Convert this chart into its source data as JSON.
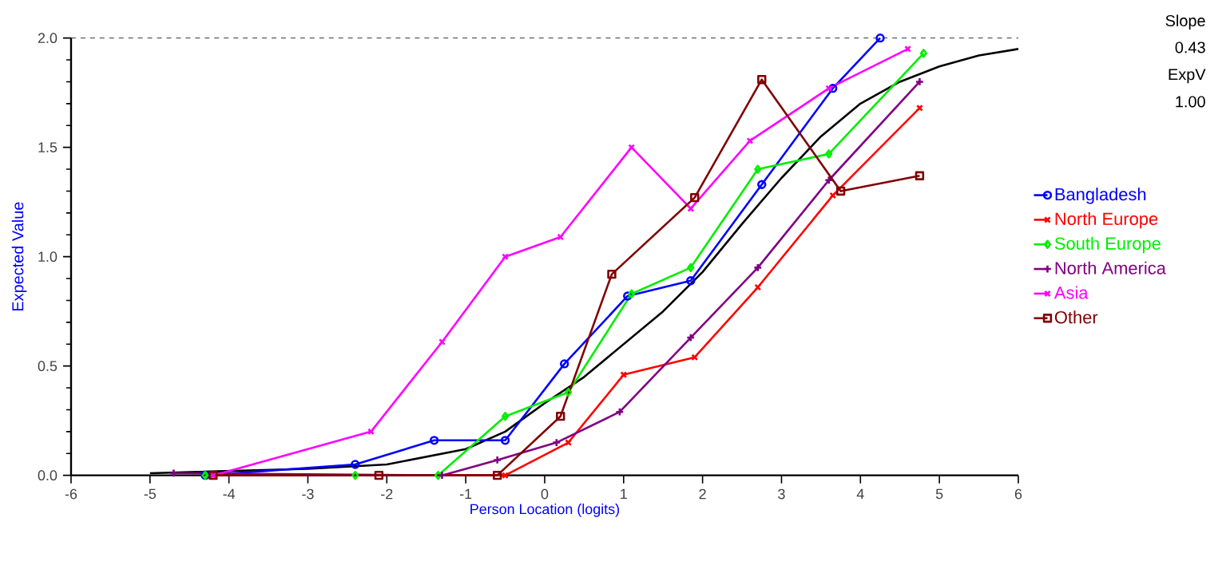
{
  "chart_data": {
    "type": "line",
    "xlabel": "Person Location (logits)",
    "ylabel": "Expected Value",
    "xlim": [
      -6,
      6
    ],
    "xticks": [
      -6,
      -5,
      -4,
      -3,
      -2,
      -1,
      0,
      1,
      2,
      3,
      4,
      5,
      6
    ],
    "ylim": [
      0,
      2
    ],
    "yticks": [
      {
        "value": 0,
        "label": "0.0"
      },
      {
        "value": 0.5,
        "label": "0.5"
      },
      {
        "value": 1,
        "label": "1.0"
      },
      {
        "value": 1.5,
        "label": "1.5"
      },
      {
        "value": 2,
        "label": "2.0"
      }
    ],
    "grid": false,
    "legend": "right",
    "ref_lines": [
      {
        "axis": "y",
        "value": 2,
        "line_style": "dashed",
        "color": "#000000"
      }
    ],
    "annotations": [
      "Slope",
      "0.43",
      "ExpV",
      "1.00"
    ],
    "series": [
      {
        "color": "#000000",
        "marker": "none",
        "x": [
          -5,
          -4,
          -3,
          -2,
          -1,
          -0.5,
          0,
          0.5,
          1,
          1.5,
          2,
          2.5,
          3,
          3.5,
          4,
          4.5,
          5,
          5.5,
          6
        ],
        "values": [
          0.01,
          0.02,
          0.03,
          0.05,
          0.12,
          0.2,
          0.33,
          0.45,
          0.6,
          0.75,
          0.93,
          1.15,
          1.36,
          1.55,
          1.7,
          1.8,
          1.87,
          1.92,
          1.95
        ]
      },
      {
        "name": "Bangladesh",
        "color": "#0000ff",
        "marker": "circle",
        "x": [
          -4.3,
          -2.4,
          -1.4,
          -0.5,
          0.25,
          1.05,
          1.85,
          2.75,
          3.65,
          4.25
        ],
        "values": [
          0.0,
          0.05,
          0.16,
          0.16,
          0.51,
          0.82,
          0.89,
          1.33,
          1.77,
          2.0
        ]
      },
      {
        "name": "North Europe",
        "color": "#ff0000",
        "marker": "cross",
        "x": [
          -4.2,
          -0.5,
          0.3,
          1.0,
          1.9,
          2.7,
          3.65,
          4.75
        ],
        "values": [
          0.0,
          0.0,
          0.15,
          0.46,
          0.54,
          0.86,
          1.28,
          1.68
        ]
      },
      {
        "name": "South Europe",
        "color": "#00ee00",
        "marker": "diamond",
        "x": [
          -4.3,
          -2.4,
          -1.35,
          -0.5,
          0.3,
          1.1,
          1.85,
          2.7,
          3.6,
          4.8
        ],
        "values": [
          0.0,
          0.0,
          0.0,
          0.27,
          0.38,
          0.83,
          0.95,
          1.4,
          1.47,
          1.93
        ]
      },
      {
        "name": "North America",
        "color": "#800080",
        "marker": "plus",
        "x": [
          -4.7,
          -1.3,
          -0.6,
          0.15,
          0.95,
          1.85,
          2.7,
          3.6,
          4.75
        ],
        "values": [
          0.01,
          0.0,
          0.07,
          0.15,
          0.29,
          0.63,
          0.95,
          1.35,
          1.8
        ]
      },
      {
        "name": "Asia",
        "color": "#ff00ff",
        "marker": "cross",
        "x": [
          -4.2,
          -2.2,
          -1.3,
          -0.5,
          0.2,
          1.1,
          1.85,
          2.6,
          3.6,
          4.6
        ],
        "values": [
          0.0,
          0.2,
          0.61,
          1.0,
          1.09,
          1.5,
          1.22,
          1.53,
          1.77,
          1.95
        ]
      },
      {
        "name": "Other",
        "color": "#800000",
        "marker": "square",
        "x": [
          -4.2,
          -2.1,
          -0.6,
          0.2,
          0.85,
          1.9,
          2.75,
          3.75,
          4.75
        ],
        "values": [
          0.0,
          0.0,
          0.0,
          0.27,
          0.92,
          1.27,
          1.81,
          1.3,
          1.37
        ]
      }
    ]
  }
}
